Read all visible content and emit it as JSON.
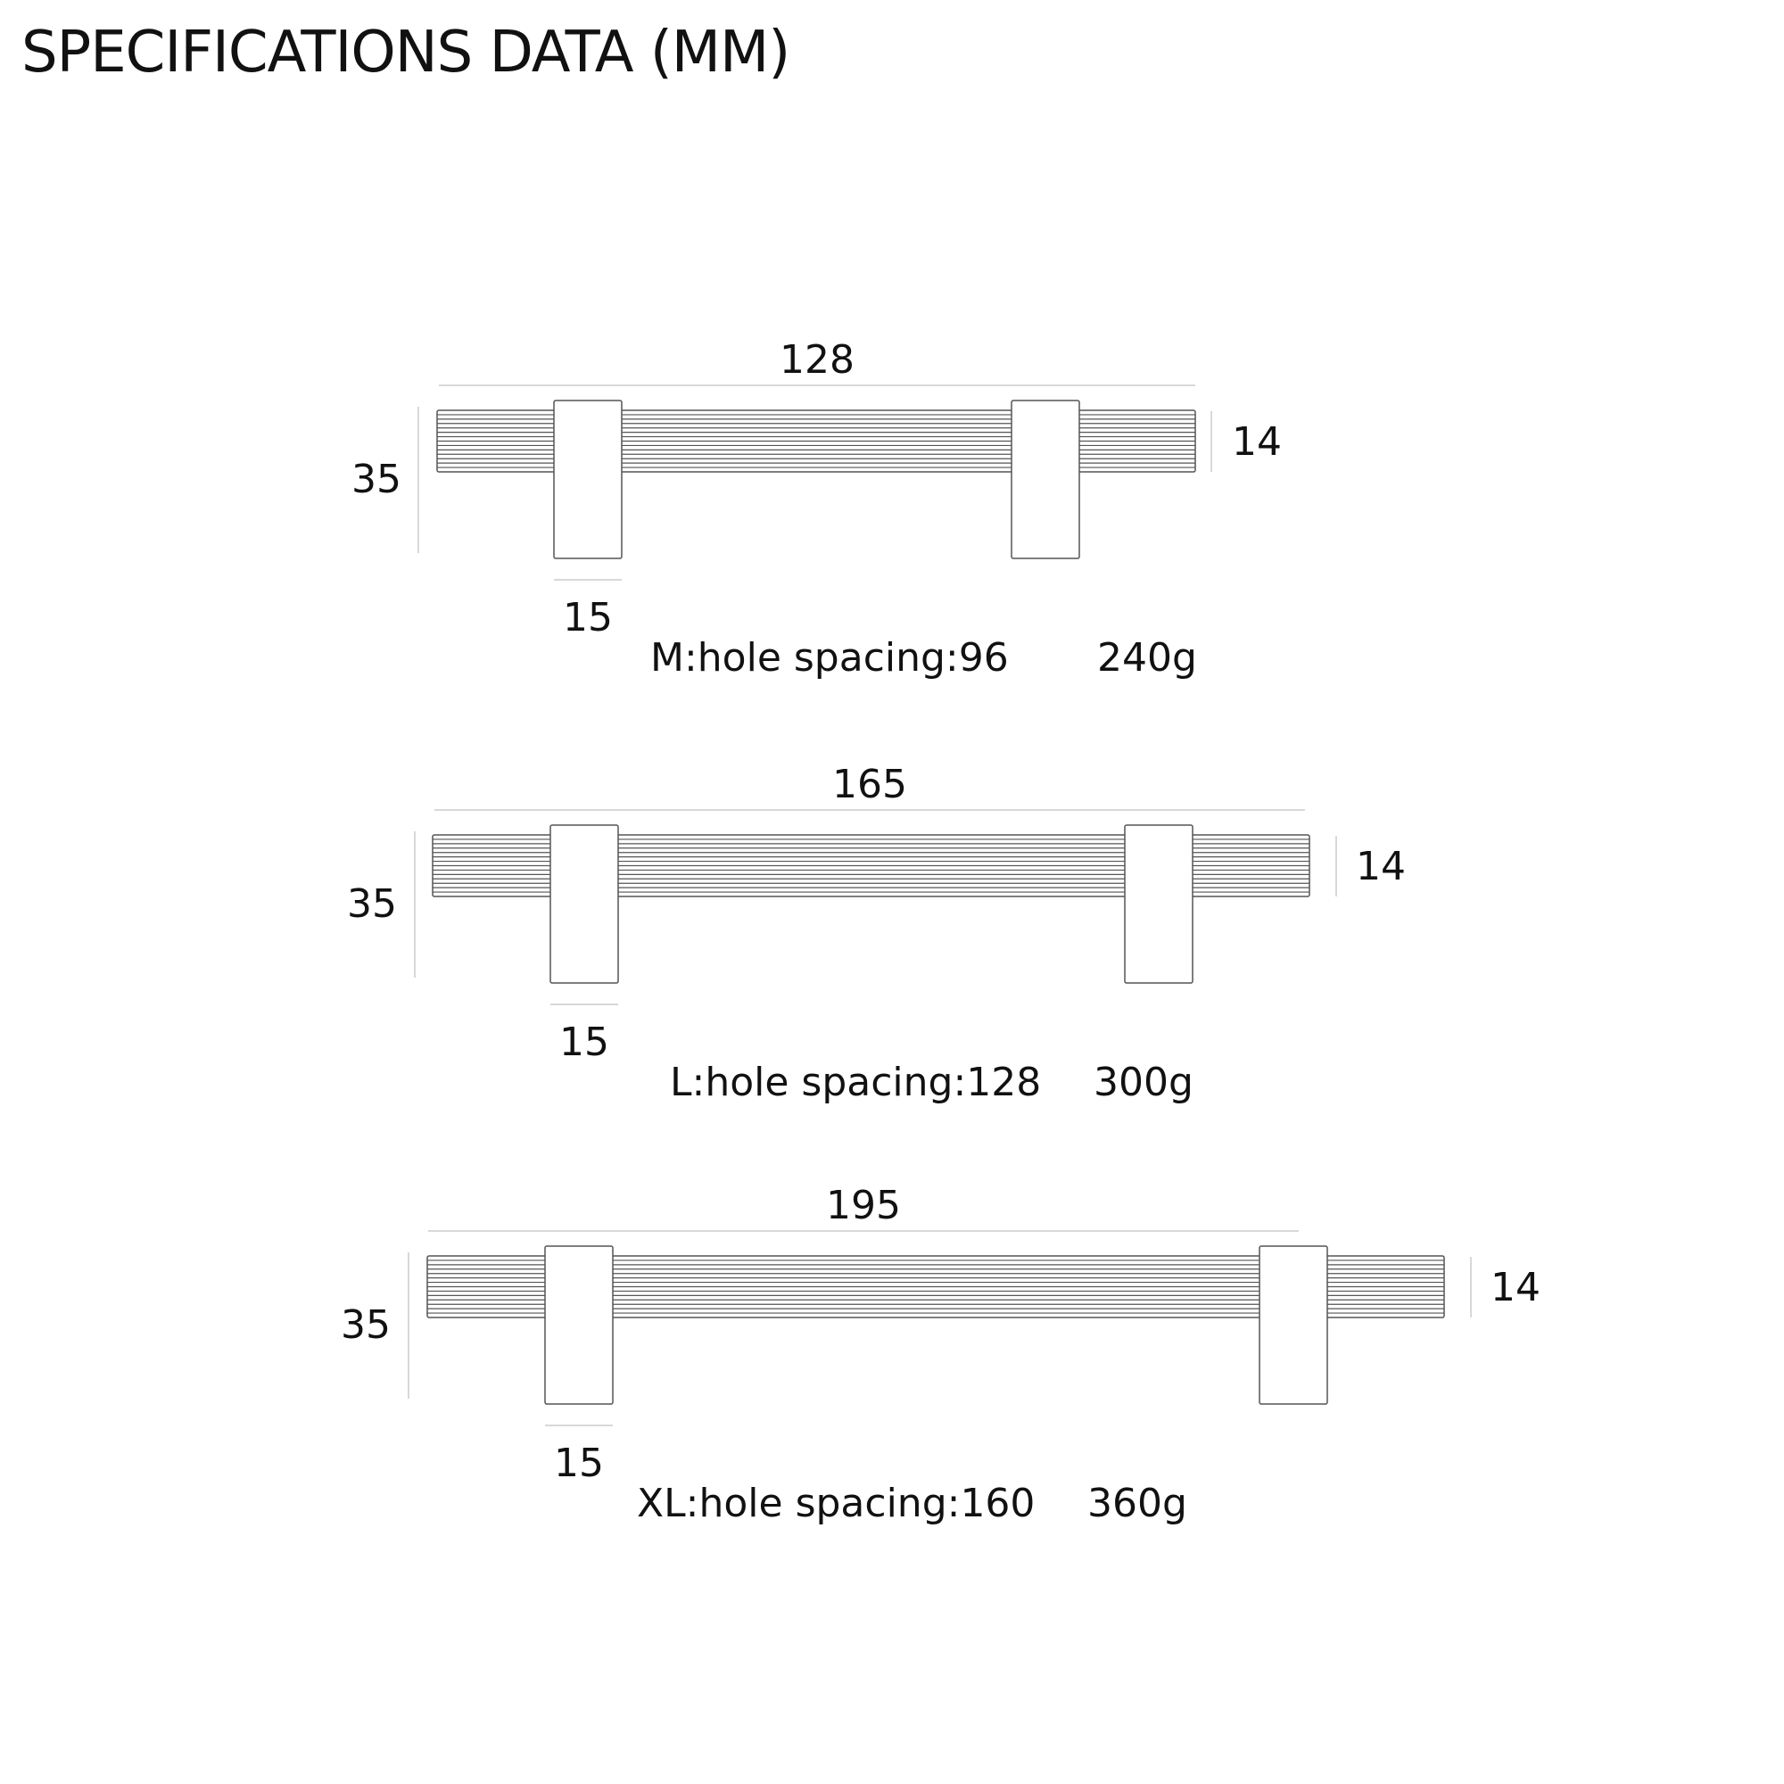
{
  "title": "SPECIFICATIONS DATA (MM)",
  "handles": [
    {
      "size": "M",
      "length": "128",
      "height": "35",
      "thickness": "14",
      "post_width": "15",
      "caption": "M:hole spacing:96",
      "weight": "240g"
    },
    {
      "size": "L",
      "length": "165",
      "height": "35",
      "thickness": "14",
      "post_width": "15",
      "caption": "L:hole spacing:128",
      "weight": "300g"
    },
    {
      "size": "XL",
      "length": "195",
      "height": "35",
      "thickness": "14",
      "post_width": "15",
      "caption": "XL:hole spacing:160",
      "weight": "360g"
    }
  ],
  "colors": {
    "line": "#555555",
    "dimension_line": "#cccccc",
    "text": "#111111"
  }
}
